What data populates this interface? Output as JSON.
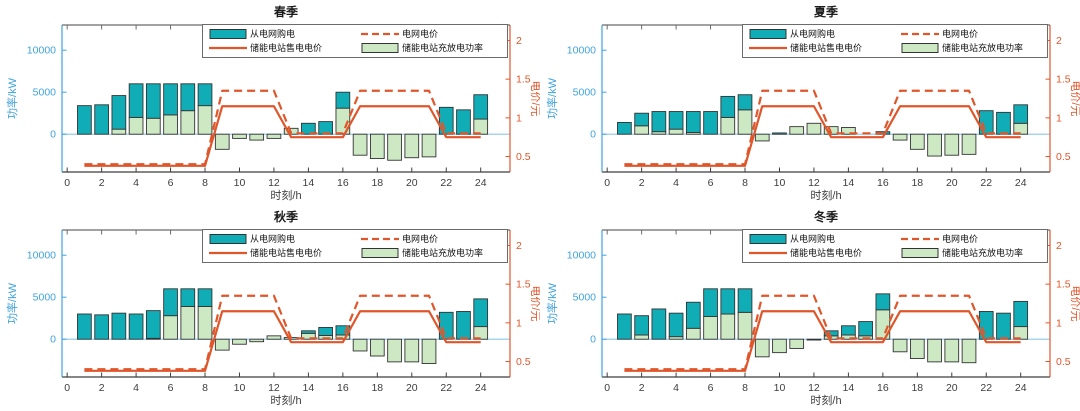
{
  "colors": {
    "purchase_bar": "#10ADB6",
    "storage_bar": "#CDE9C3",
    "bar_edge": "#333333",
    "price_line": "#E0562B",
    "left_axis": "#3FA3DC",
    "zero_line": "#8CC6E8",
    "right_axis": "#E0562B",
    "bottom_axis": "#3d3d3d",
    "top_spine": "#6b6b6b",
    "tick_label_x": "#3d3d3d",
    "title_color": "#1a1a1a",
    "legend_border": "#6b6b6b",
    "background": "#ffffff"
  },
  "legend": [
    {
      "label": "从电网购电",
      "swatch": "bar-teal"
    },
    {
      "label": "电网电价",
      "swatch": "line-dashed"
    },
    {
      "label": "储能电站售电电价",
      "swatch": "line-solid"
    },
    {
      "label": "储能电站充放电功率",
      "swatch": "bar-green"
    }
  ],
  "chart_data": {
    "type": "bar",
    "note": "2x2 grid of seasonal subplots; stacked power bars (left axis, kW) with two TOU price step lines (right axis, yuan)",
    "x": [
      1,
      2,
      3,
      4,
      5,
      6,
      7,
      8,
      9,
      10,
      11,
      12,
      13,
      14,
      15,
      16,
      17,
      18,
      19,
      20,
      21,
      22,
      23,
      24
    ],
    "axes": {
      "x": {
        "label": "时刻/h",
        "ticks": [
          0,
          2,
          4,
          6,
          8,
          10,
          12,
          14,
          16,
          18,
          20,
          22,
          24
        ],
        "lim": [
          -0.3,
          25.7
        ]
      },
      "left": {
        "label": "功率/kW",
        "ticks": [
          0,
          5000,
          10000
        ],
        "lim": [
          -4500,
          13000
        ]
      },
      "right": {
        "label": "电价/元",
        "ticks": [
          0.5,
          1,
          1.5,
          2
        ],
        "lim": [
          0.3,
          2.2
        ]
      }
    },
    "grid_price_yuan": [
      0.4,
      0.4,
      0.4,
      0.4,
      0.4,
      0.4,
      0.4,
      0.4,
      1.35,
      1.35,
      1.35,
      1.35,
      0.8,
      0.8,
      0.8,
      0.8,
      1.35,
      1.35,
      1.35,
      1.35,
      1.35,
      0.8,
      0.8,
      0.8
    ],
    "storage_sell_price_yuan": [
      0.38,
      0.38,
      0.38,
      0.38,
      0.38,
      0.38,
      0.38,
      0.38,
      1.15,
      1.15,
      1.15,
      1.15,
      0.75,
      0.75,
      0.75,
      0.75,
      1.15,
      1.15,
      1.15,
      1.15,
      1.15,
      0.75,
      0.75,
      0.75
    ],
    "panels": [
      {
        "title": "春季",
        "grid_purchase_kw": [
          3400,
          3500,
          4000,
          4000,
          4100,
          3700,
          3200,
          2600,
          0,
          0,
          0,
          0,
          0,
          1300,
          1500,
          1900,
          0,
          0,
          0,
          0,
          0,
          3200,
          2900,
          2900
        ],
        "storage_power_kw": [
          0,
          0,
          600,
          2000,
          1900,
          2300,
          2800,
          3400,
          -1800,
          -500,
          -700,
          -500,
          700,
          0,
          0,
          3100,
          -2500,
          -2900,
          -3100,
          -2800,
          -2700,
          0,
          0,
          1800
        ]
      },
      {
        "title": "夏季",
        "grid_purchase_kw": [
          1400,
          1500,
          2400,
          2100,
          2500,
          2700,
          2500,
          1800,
          0,
          150,
          0,
          0,
          0,
          0,
          0,
          300,
          0,
          0,
          0,
          0,
          0,
          2800,
          2600,
          2200
        ],
        "storage_power_kw": [
          0,
          1000,
          300,
          600,
          200,
          0,
          2000,
          2900,
          -800,
          0,
          900,
          1300,
          900,
          800,
          0,
          0,
          -700,
          -1800,
          -2600,
          -2500,
          -2400,
          0,
          0,
          1300
        ]
      },
      {
        "title": "秋季",
        "grid_purchase_kw": [
          3000,
          2900,
          3100,
          3000,
          3300,
          3200,
          2100,
          2100,
          0,
          0,
          0,
          0,
          0,
          300,
          950,
          1100,
          0,
          0,
          0,
          0,
          0,
          3200,
          3300,
          3300
        ],
        "storage_power_kw": [
          0,
          0,
          0,
          0,
          100,
          2800,
          3900,
          3900,
          -1300,
          -600,
          -300,
          400,
          200,
          700,
          450,
          500,
          -1400,
          -2000,
          -2700,
          -2700,
          -2900,
          0,
          0,
          1500
        ]
      },
      {
        "title": "冬季",
        "grid_purchase_kw": [
          3000,
          2300,
          3600,
          2800,
          3100,
          3300,
          3000,
          2800,
          0,
          0,
          0,
          0,
          600,
          1100,
          1700,
          1900,
          0,
          0,
          0,
          0,
          0,
          3300,
          3100,
          3000
        ],
        "storage_power_kw": [
          0,
          500,
          0,
          300,
          1300,
          2700,
          3000,
          3200,
          -2100,
          -1600,
          -1100,
          -100,
          400,
          500,
          400,
          3500,
          -1500,
          -2300,
          -2700,
          -2700,
          -2800,
          0,
          0,
          1500
        ]
      }
    ]
  }
}
